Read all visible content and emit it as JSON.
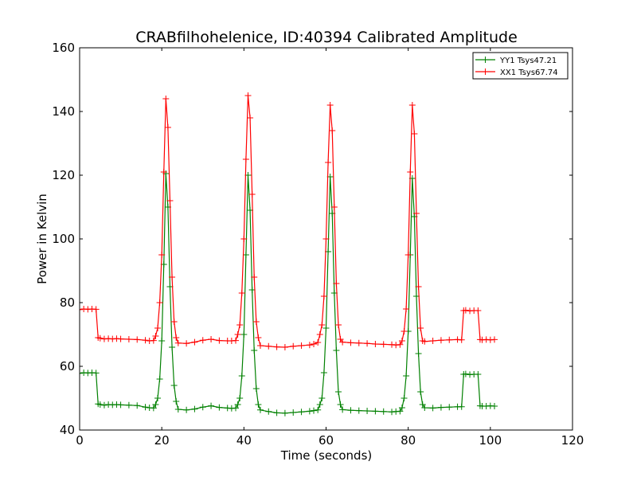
{
  "chart_data": {
    "type": "line",
    "title": "CRABfilhohelenice, ID:40394 Calibrated Amplitude",
    "xlabel": "Time (seconds)",
    "ylabel": "Power in Kelvin",
    "xlim": [
      0,
      120
    ],
    "ylim": [
      40,
      160
    ],
    "xticks": [
      0,
      20,
      40,
      60,
      80,
      100,
      120
    ],
    "yticks": [
      40,
      60,
      80,
      100,
      120,
      140,
      160
    ],
    "grid": false,
    "legend_position": "top-right",
    "marker": "plus",
    "series": [
      {
        "name": "YY1 Tsys47.21",
        "color": "#008000",
        "x": [
          0,
          1,
          2,
          3,
          4,
          4.5,
          5,
          6,
          7,
          8,
          9,
          10,
          12,
          14,
          16,
          17,
          18,
          18.5,
          19,
          19.5,
          20,
          20.5,
          21,
          21.5,
          22,
          22.5,
          23,
          23.5,
          24,
          26,
          28,
          30,
          32,
          34,
          36,
          37,
          38,
          38.5,
          39,
          39.5,
          40,
          40.5,
          41,
          41.5,
          42,
          42.5,
          43,
          43.5,
          44,
          46,
          48,
          50,
          52,
          54,
          56,
          57,
          58,
          58.5,
          59,
          59.5,
          60,
          60.5,
          61,
          61.5,
          62,
          62.5,
          63,
          63.5,
          64,
          66,
          68,
          70,
          72,
          74,
          76,
          77,
          78,
          78.5,
          79,
          79.5,
          80,
          80.5,
          81,
          81.5,
          82,
          82.5,
          83,
          83.5,
          84,
          86,
          88,
          90,
          92,
          93,
          93.5,
          94,
          95,
          96,
          97,
          97.5,
          98,
          99,
          100,
          101
        ],
        "y": [
          57.8,
          58,
          57.9,
          58,
          57.9,
          48.2,
          48,
          47.8,
          48,
          47.9,
          48,
          47.9,
          47.8,
          47.7,
          47.2,
          47,
          46.9,
          48,
          50,
          56,
          68,
          92,
          120.5,
          110,
          85,
          66,
          54,
          49,
          46.5,
          46.3,
          46.6,
          47.2,
          47.6,
          47.1,
          46.9,
          46.8,
          46.9,
          48,
          50,
          57,
          70,
          95,
          120,
          109,
          84,
          65,
          53,
          48,
          46.3,
          45.8,
          45.4,
          45.3,
          45.5,
          45.7,
          45.9,
          46.1,
          46.3,
          48,
          50,
          58,
          72,
          96,
          119.5,
          108,
          83,
          65,
          52,
          48,
          46.4,
          46.2,
          46.1,
          46,
          45.9,
          45.8,
          45.7,
          45.8,
          45.9,
          47,
          50,
          57,
          71,
          95,
          119,
          107,
          82,
          64,
          52,
          48,
          47,
          46.9,
          47.1,
          47.2,
          47.3,
          47.3,
          57.5,
          57.6,
          57.4,
          57.5,
          57.5,
          47.6,
          47.5,
          47.5,
          47.6,
          47.5
        ]
      },
      {
        "name": "XX1 Tsys67.74",
        "color": "#ff0000",
        "x": [
          0,
          1,
          2,
          3,
          4,
          4.5,
          5,
          6,
          7,
          8,
          9,
          10,
          12,
          14,
          16,
          17,
          18,
          18.5,
          19,
          19.5,
          20,
          20.5,
          21,
          21.5,
          22,
          22.5,
          23,
          23.5,
          24,
          26,
          28,
          30,
          32,
          34,
          36,
          37,
          38,
          38.5,
          39,
          39.5,
          40,
          40.5,
          41,
          41.5,
          42,
          42.5,
          43,
          43.5,
          44,
          46,
          48,
          50,
          52,
          54,
          56,
          57,
          58,
          58.5,
          59,
          59.5,
          60,
          60.5,
          61,
          61.5,
          62,
          62.5,
          63,
          63.5,
          64,
          66,
          68,
          70,
          72,
          74,
          76,
          77,
          78,
          78.5,
          79,
          79.5,
          80,
          80.5,
          81,
          81.5,
          82,
          82.5,
          83,
          83.5,
          84,
          86,
          88,
          90,
          92,
          93,
          93.5,
          94,
          95,
          96,
          97,
          97.5,
          98,
          99,
          100,
          101
        ],
        "y": [
          77.8,
          78,
          77.9,
          78,
          77.9,
          69,
          68.8,
          68.6,
          68.7,
          68.6,
          68.7,
          68.6,
          68.5,
          68.4,
          68.2,
          68,
          68.1,
          69.5,
          72,
          80,
          95,
          121,
          144,
          135,
          112,
          88,
          74,
          69,
          67.3,
          67.2,
          67.6,
          68.2,
          68.5,
          68.1,
          68,
          68,
          68.1,
          70,
          73,
          83,
          100,
          125,
          145,
          138,
          114,
          88,
          74,
          69,
          66.5,
          66.3,
          66.1,
          66,
          66.3,
          66.5,
          66.7,
          67,
          67.5,
          70,
          73,
          82,
          100,
          124,
          142,
          134,
          110,
          86,
          73,
          68.5,
          67.6,
          67.4,
          67.3,
          67.2,
          67,
          66.9,
          66.8,
          66.7,
          66.8,
          68,
          71,
          78,
          95,
          121,
          142,
          133,
          108,
          85,
          72,
          68,
          67.8,
          68,
          68.2,
          68.3,
          68.4,
          68.3,
          77.5,
          77.6,
          77.4,
          77.5,
          77.5,
          68.4,
          68.3,
          68.4,
          68.3,
          68.4
        ]
      }
    ]
  }
}
